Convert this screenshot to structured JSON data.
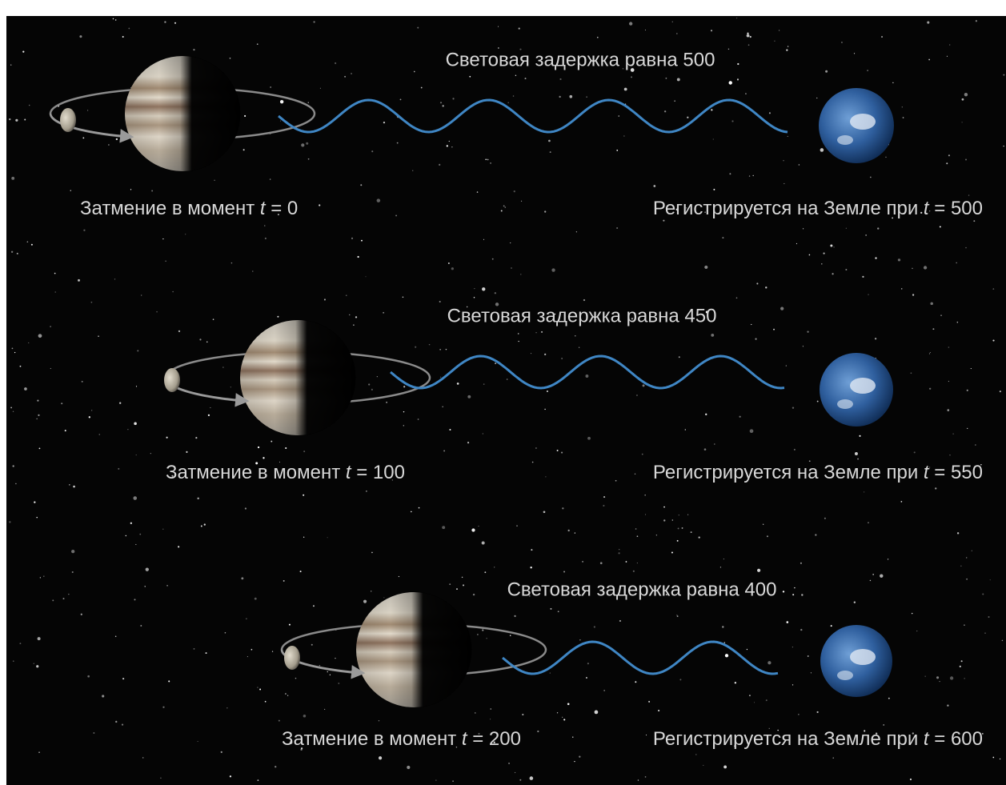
{
  "rows": [
    {
      "delay": "Световая задержка равна 500",
      "eclipse": {
        "prefix": "Затмение в момент",
        "variable": "t",
        "value": "= 0"
      },
      "registered": {
        "prefix": "Регистрируется на Земле при",
        "variable": "t",
        "value": "= 500"
      }
    },
    {
      "delay": "Световая задержка равна 450",
      "eclipse": {
        "prefix": "Затмение в момент",
        "variable": "t",
        "value": "= 100"
      },
      "registered": {
        "prefix": "Регистрируется на  Земле при",
        "variable": "t",
        "value": "= 550"
      }
    },
    {
      "delay": "Световая задержка равна 400",
      "eclipse": {
        "prefix": "Затмение в момент",
        "variable": "t",
        "value": "= 200"
      },
      "registered": {
        "prefix": "Регистрируется на  Земле при",
        "variable": "t",
        "value": "= 600"
      }
    }
  ]
}
